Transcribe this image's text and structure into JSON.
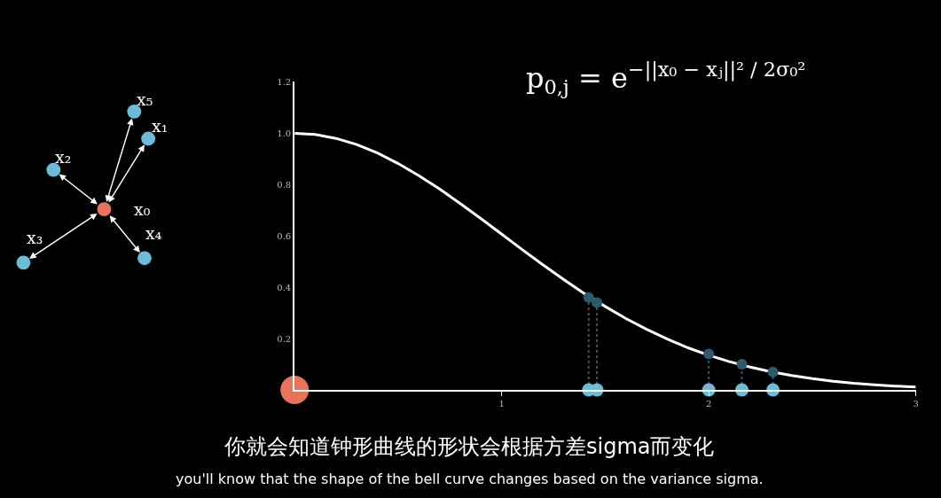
{
  "chart_data": [
    {
      "type": "other",
      "annotations": [
        "x₀",
        "x₁",
        "x₅",
        "x₂",
        "x₃",
        "x₄"
      ]
    },
    {
      "type": "line",
      "xlim": [
        0,
        3
      ],
      "ylim": [
        0,
        1.2
      ],
      "grid": false,
      "xticks": [
        1,
        2,
        3
      ],
      "yticks": [
        0.2,
        0.4,
        0.6,
        0.8,
        {
          "value": 1,
          "label": "1.0"
        },
        1.2
      ],
      "series": [
        {
          "type": "line",
          "color": "#ffffff",
          "x": [
            0,
            0.1,
            0.2,
            0.3,
            0.4,
            0.5,
            0.6,
            0.7,
            0.8,
            0.9,
            1.0,
            1.1,
            1.2,
            1.3,
            1.4,
            1.5,
            1.6,
            1.7,
            1.8,
            1.9,
            2.0,
            2.1,
            2.2,
            2.3,
            2.4,
            2.5,
            2.6,
            2.7,
            2.8,
            2.9,
            3.0
          ],
          "values": [
            1.0,
            0.995,
            0.98,
            0.956,
            0.923,
            0.882,
            0.835,
            0.783,
            0.726,
            0.667,
            0.607,
            0.546,
            0.487,
            0.43,
            0.375,
            0.325,
            0.278,
            0.236,
            0.198,
            0.164,
            0.135,
            0.11,
            0.089,
            0.071,
            0.056,
            0.044,
            0.034,
            0.026,
            0.02,
            0.015,
            0.011
          ]
        },
        {
          "type": "lollipop",
          "color": "#2e5b6b",
          "line_style": "dotted",
          "x": [
            1.42,
            1.46,
            2.0,
            2.16,
            2.31
          ],
          "values": [
            0.36,
            0.34,
            0.14,
            0.1,
            0.07
          ]
        },
        {
          "type": "scatter",
          "color": "#6bbcd8",
          "x": [
            1.42,
            1.46,
            2.0,
            2.16,
            2.31
          ],
          "values": [
            0,
            0,
            0,
            0,
            0
          ]
        },
        {
          "type": "scatter",
          "color": "#e8735a",
          "x": [
            0
          ],
          "values": [
            0
          ]
        }
      ],
      "annotations": [
        "p$_{0,j}$ = e$^{−||x₀ − xⱼ||² / 2σ₀²}$",
        "你就会知道钟形曲线的形状会根据方差sigma而变化",
        "you'll know that the shape of the bell curve changes based on the variance sigma."
      ]
    }
  ]
}
